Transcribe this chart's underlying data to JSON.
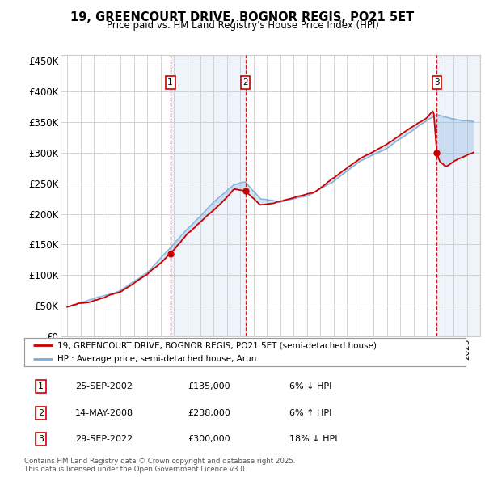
{
  "title": "19, GREENCOURT DRIVE, BOGNOR REGIS, PO21 5ET",
  "subtitle": "Price paid vs. HM Land Registry's House Price Index (HPI)",
  "ylim": [
    0,
    460000
  ],
  "yticks": [
    0,
    50000,
    100000,
    150000,
    200000,
    250000,
    300000,
    350000,
    400000,
    450000
  ],
  "ytick_labels": [
    "£0",
    "£50K",
    "£100K",
    "£150K",
    "£200K",
    "£250K",
    "£300K",
    "£350K",
    "£400K",
    "£450K"
  ],
  "sale_dates_num": [
    2002.73,
    2008.37,
    2022.75
  ],
  "sale_prices": [
    135000,
    238000,
    300000
  ],
  "sale_labels": [
    "1",
    "2",
    "3"
  ],
  "legend_property": "19, GREENCOURT DRIVE, BOGNOR REGIS, PO21 5ET (semi-detached house)",
  "legend_hpi": "HPI: Average price, semi-detached house, Arun",
  "table_rows": [
    [
      "1",
      "25-SEP-2002",
      "£135,000",
      "6% ↓ HPI"
    ],
    [
      "2",
      "14-MAY-2008",
      "£238,000",
      "6% ↑ HPI"
    ],
    [
      "3",
      "29-SEP-2022",
      "£300,000",
      "18% ↓ HPI"
    ]
  ],
  "footer": "Contains HM Land Registry data © Crown copyright and database right 2025.\nThis data is licensed under the Open Government Licence v3.0.",
  "property_color": "#cc0000",
  "hpi_color": "#7aabda",
  "hpi_fill_color": "#ddeeff",
  "background_color": "#ffffff",
  "grid_color": "#cccccc",
  "dashed_line_color": "#cc0000"
}
